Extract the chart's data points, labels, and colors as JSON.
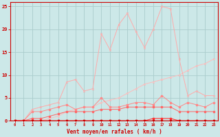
{
  "x": [
    0,
    1,
    2,
    3,
    4,
    5,
    6,
    7,
    8,
    9,
    10,
    11,
    12,
    13,
    14,
    15,
    16,
    17,
    18,
    19,
    20,
    21,
    22,
    23
  ],
  "line_rafales": [
    0,
    0,
    2.5,
    3,
    3.5,
    4,
    8.5,
    9,
    6.5,
    7,
    19,
    15.5,
    21,
    23.5,
    19.5,
    16,
    20,
    25,
    24.5,
    13.5,
    5.5,
    6.5,
    5.5,
    5.5
  ],
  "line_moyen": [
    0,
    0,
    0,
    0,
    0.5,
    1,
    2,
    2.5,
    3,
    3,
    4,
    4.5,
    5,
    6,
    7,
    8,
    8.5,
    9,
    9.5,
    10,
    11,
    12,
    12.5,
    13.5
  ],
  "line_mid1": [
    0,
    0,
    2,
    2,
    2.5,
    3,
    3.5,
    2.5,
    3,
    3,
    5,
    3,
    3,
    3.5,
    4,
    4,
    3.5,
    5.5,
    4,
    3,
    4,
    3.5,
    3,
    4
  ],
  "line_low1": [
    0,
    0,
    0.5,
    0.5,
    1,
    1.5,
    2,
    2,
    2,
    2,
    2.5,
    2.5,
    2.5,
    3,
    3,
    3,
    3,
    3,
    3,
    2,
    2,
    2,
    2,
    2
  ],
  "line_flat1": [
    0,
    0,
    0,
    0,
    0,
    0,
    0,
    0,
    0,
    0,
    0,
    0,
    0,
    0,
    0,
    0,
    0.5,
    0.5,
    0.5,
    0,
    0,
    0,
    0,
    0
  ],
  "line_flat0": [
    0,
    0,
    0,
    0,
    0,
    0,
    0,
    0,
    0,
    0,
    0,
    0,
    0,
    0,
    0,
    0,
    0,
    0,
    0,
    0,
    0,
    0,
    0,
    0
  ],
  "bg_color": "#cce8e8",
  "grid_color": "#aacccc",
  "col_rafales": "#ffaaaa",
  "col_moyen": "#ffbbbb",
  "col_mid1": "#ff8888",
  "col_low1": "#ff6666",
  "col_flat1": "#ff3333",
  "col_flat0": "#cc0000",
  "xlabel": "Vent moyen/en rafales ( km/h )",
  "xlabel_color": "#cc0000",
  "tick_color": "#cc0000",
  "ylim": [
    0,
    26
  ],
  "xlim": [
    -0.5,
    23.5
  ]
}
